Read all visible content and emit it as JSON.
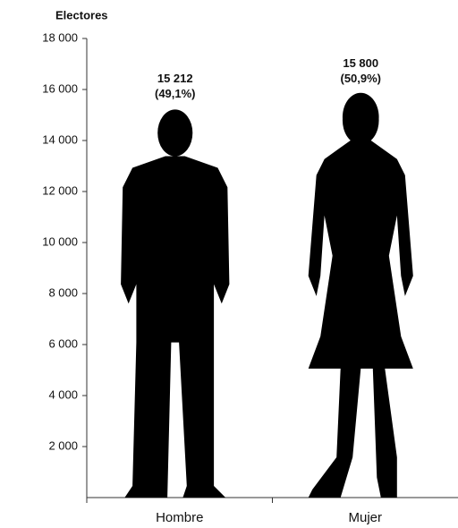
{
  "chart_data": {
    "type": "pictograph",
    "y_axis_label": "Electores",
    "categories": [
      "Hombre",
      "Mujer"
    ],
    "values": [
      15212,
      15800
    ],
    "value_labels": [
      "15 212",
      "15 800"
    ],
    "percent_values": [
      49.1,
      50.9
    ],
    "percent_labels": [
      "(49,1%)",
      "(50,9%)"
    ],
    "color": "#000000",
    "ylim": [
      0,
      18000
    ],
    "yticks": [
      {
        "value": 2000,
        "label": "2 000"
      },
      {
        "value": 4000,
        "label": "4 000"
      },
      {
        "value": 6000,
        "label": "6 000"
      },
      {
        "value": 8000,
        "label": "8 000"
      },
      {
        "value": 10000,
        "label": "10 000"
      },
      {
        "value": 12000,
        "label": "12 000"
      },
      {
        "value": 14000,
        "label": "14 000"
      },
      {
        "value": 16000,
        "label": "16 000"
      },
      {
        "value": 18000,
        "label": "18 000"
      }
    ]
  }
}
